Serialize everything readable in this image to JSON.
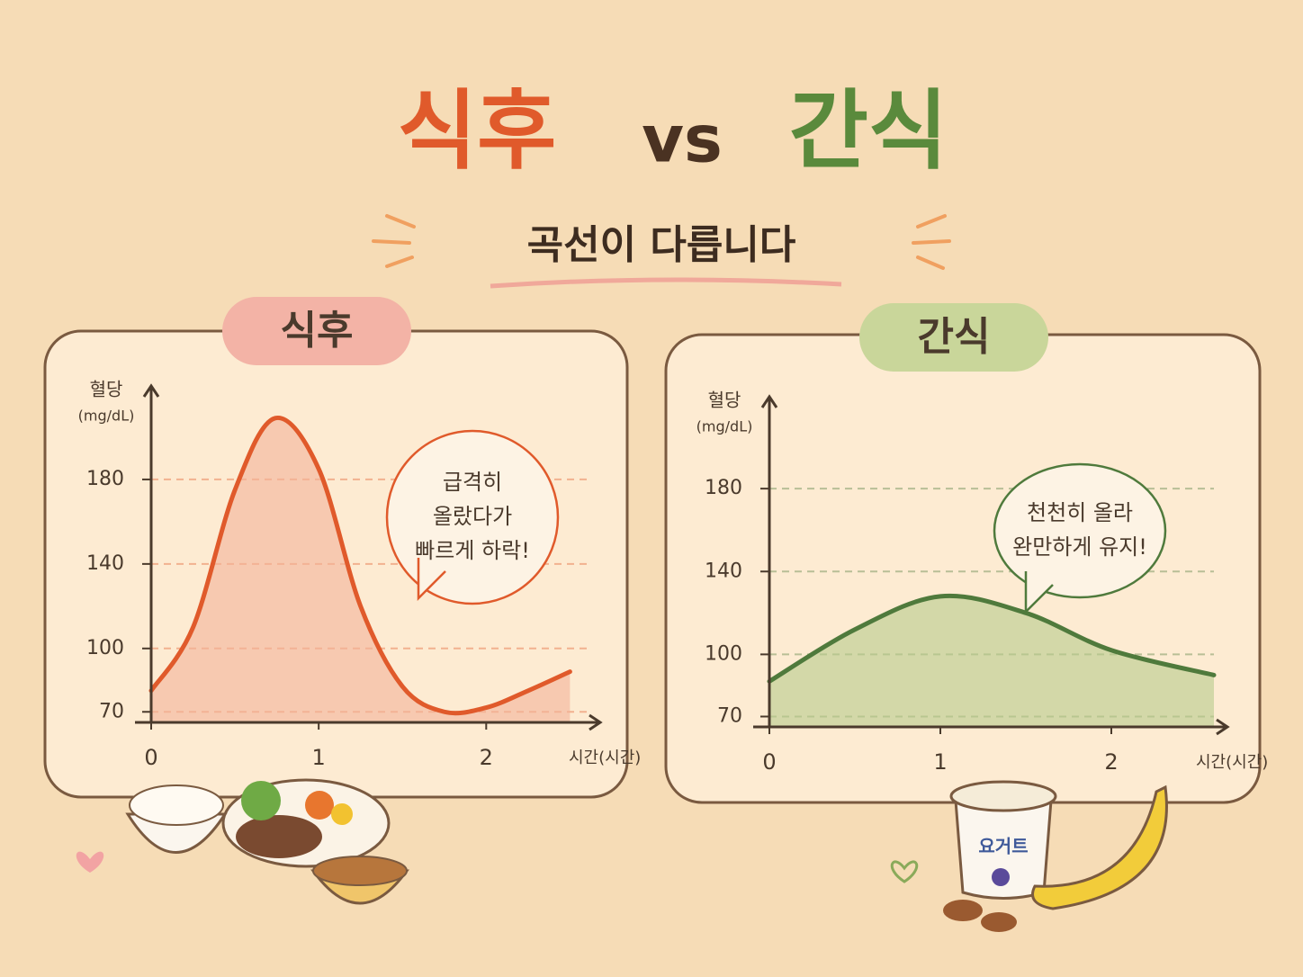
{
  "header": {
    "title_left": "식후",
    "title_vs": "vs",
    "title_right": "간식",
    "subtitle": "곡선이 다릅니다"
  },
  "chart_data": [
    {
      "type": "area",
      "label": "식후",
      "y_label": "혈당",
      "y_unit": "(mg/dL)",
      "x_label": "시간(시간)",
      "annotation": [
        "급격히",
        "올랐다가",
        "빠르게 하락!"
      ],
      "x": [
        0,
        0.25,
        0.5,
        0.74,
        1.0,
        1.25,
        1.5,
        1.75,
        2.0,
        2.25,
        2.5
      ],
      "values": [
        80,
        110,
        175,
        209,
        185,
        120,
        82,
        70,
        72,
        80,
        89
      ],
      "color": "#e05a2b",
      "fill": "#f3b29a",
      "xlim": [
        0,
        2.6
      ],
      "ylim": [
        65,
        220
      ],
      "xticks": [
        0,
        1,
        2
      ],
      "yticks": [
        70,
        100,
        140,
        180
      ],
      "grid": true
    },
    {
      "type": "area",
      "label": "간식",
      "y_label": "혈당",
      "y_unit": "(mg/dL)",
      "x_label": "시간(시간)",
      "annotation": [
        "천천히 올라",
        "완만하게 유지!"
      ],
      "x": [
        0,
        0.5,
        1.0,
        1.5,
        2.0,
        2.6
      ],
      "values": [
        87,
        112,
        128,
        120,
        102,
        90
      ],
      "color": "#4f7a3c",
      "fill": "#b8cb8c",
      "xlim": [
        0,
        2.6
      ],
      "ylim": [
        65,
        220
      ],
      "xticks": [
        0,
        1,
        2
      ],
      "yticks": [
        70,
        100,
        140,
        180
      ],
      "grid": true
    }
  ],
  "food": {
    "yogurt_label": "요거트"
  }
}
